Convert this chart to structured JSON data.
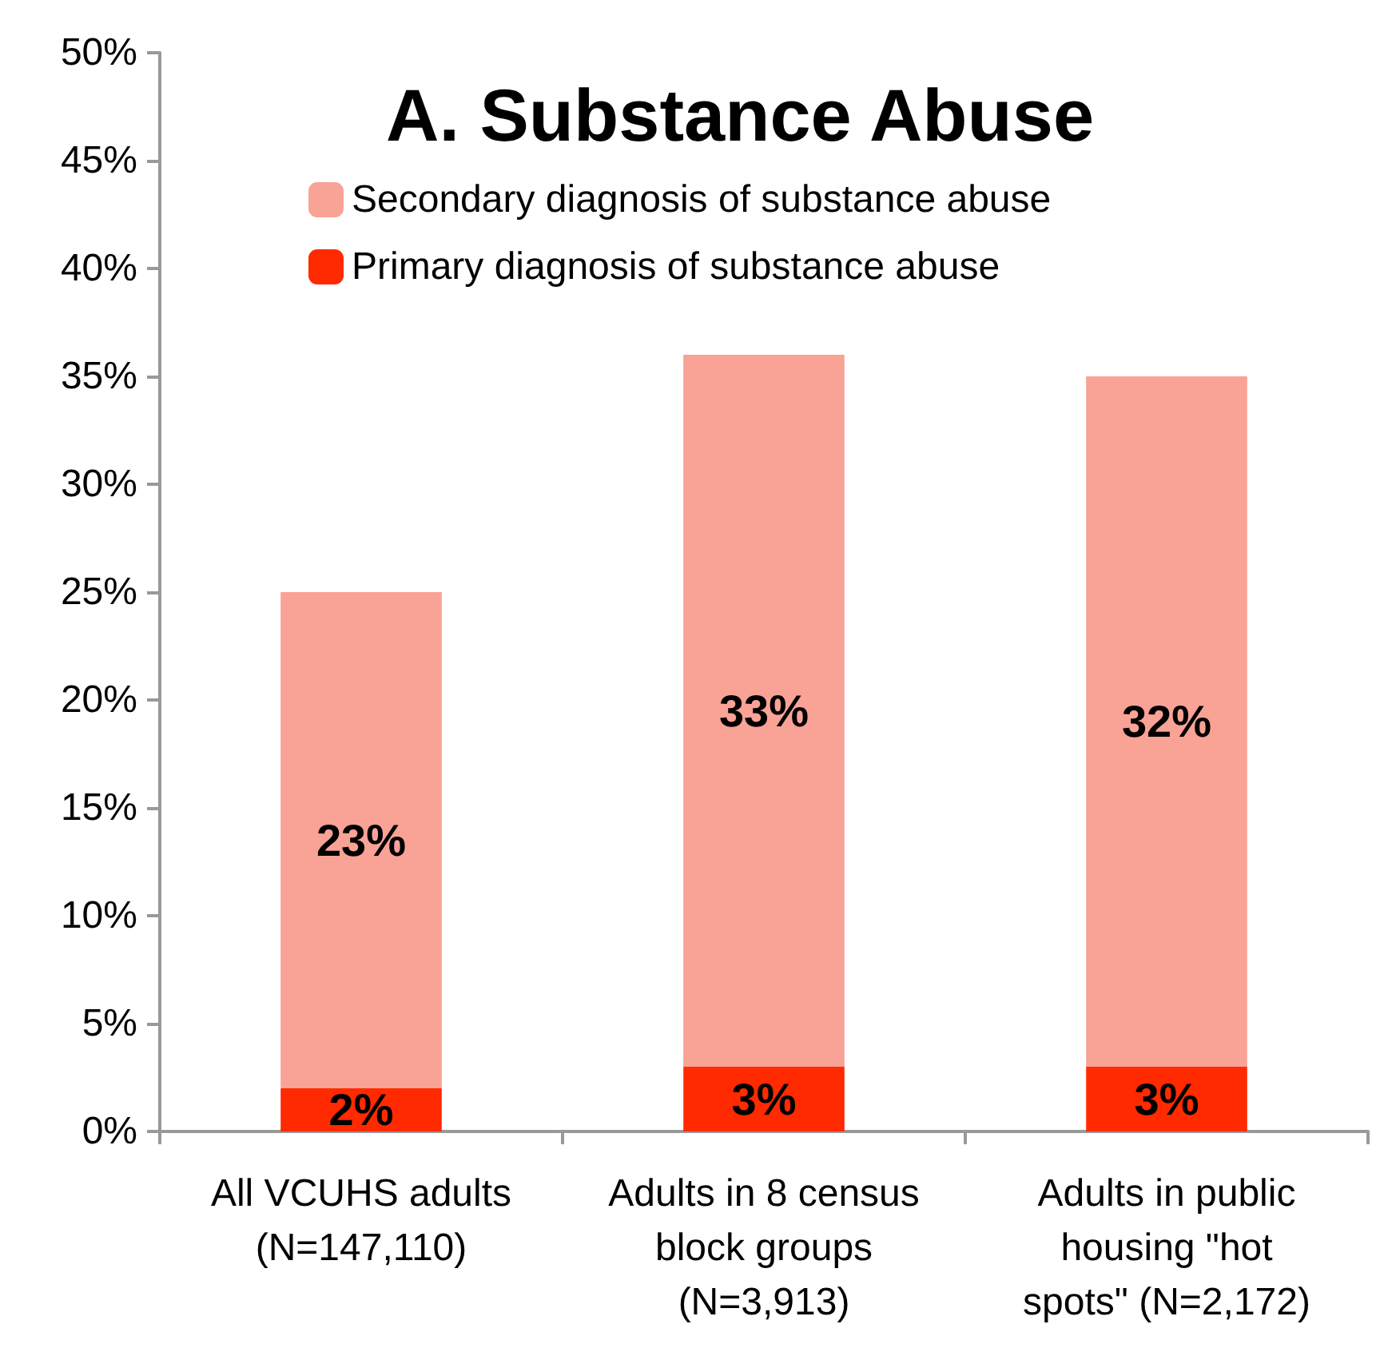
{
  "chart_data": {
    "type": "bar",
    "title": "A. Substance Abuse",
    "categories": [
      "All VCUHS adults\n(N=147,110)",
      "Adults in 8 census\nblock groups\n(N=3,913)",
      "Adults in public\nhousing \"hot\nspots\" (N=2,172)"
    ],
    "stacked": true,
    "series": [
      {
        "name": "Primary diagnosis of substance abuse",
        "color": "#ff2a00",
        "values": [
          2,
          3,
          3
        ],
        "value_labels": [
          "2%",
          "3%",
          "3%"
        ]
      },
      {
        "name": "Secondary diagnosis of substance abuse",
        "color": "#f9a296",
        "values": [
          23,
          33,
          32
        ],
        "value_labels": [
          "23%",
          "33%",
          "32%"
        ]
      }
    ],
    "ylim": [
      0,
      50
    ],
    "yticks": [
      {
        "value": 0,
        "label": "0%"
      },
      {
        "value": 5,
        "label": "5%"
      },
      {
        "value": 10,
        "label": "10%"
      },
      {
        "value": 15,
        "label": "15%"
      },
      {
        "value": 20,
        "label": "20%"
      },
      {
        "value": 25,
        "label": "25%"
      },
      {
        "value": 30,
        "label": "30%"
      },
      {
        "value": 35,
        "label": "35%"
      },
      {
        "value": 40,
        "label": "40%"
      },
      {
        "value": 45,
        "label": "45%"
      },
      {
        "value": 50,
        "label": "50%"
      }
    ],
    "grid": false,
    "legend": "top"
  }
}
